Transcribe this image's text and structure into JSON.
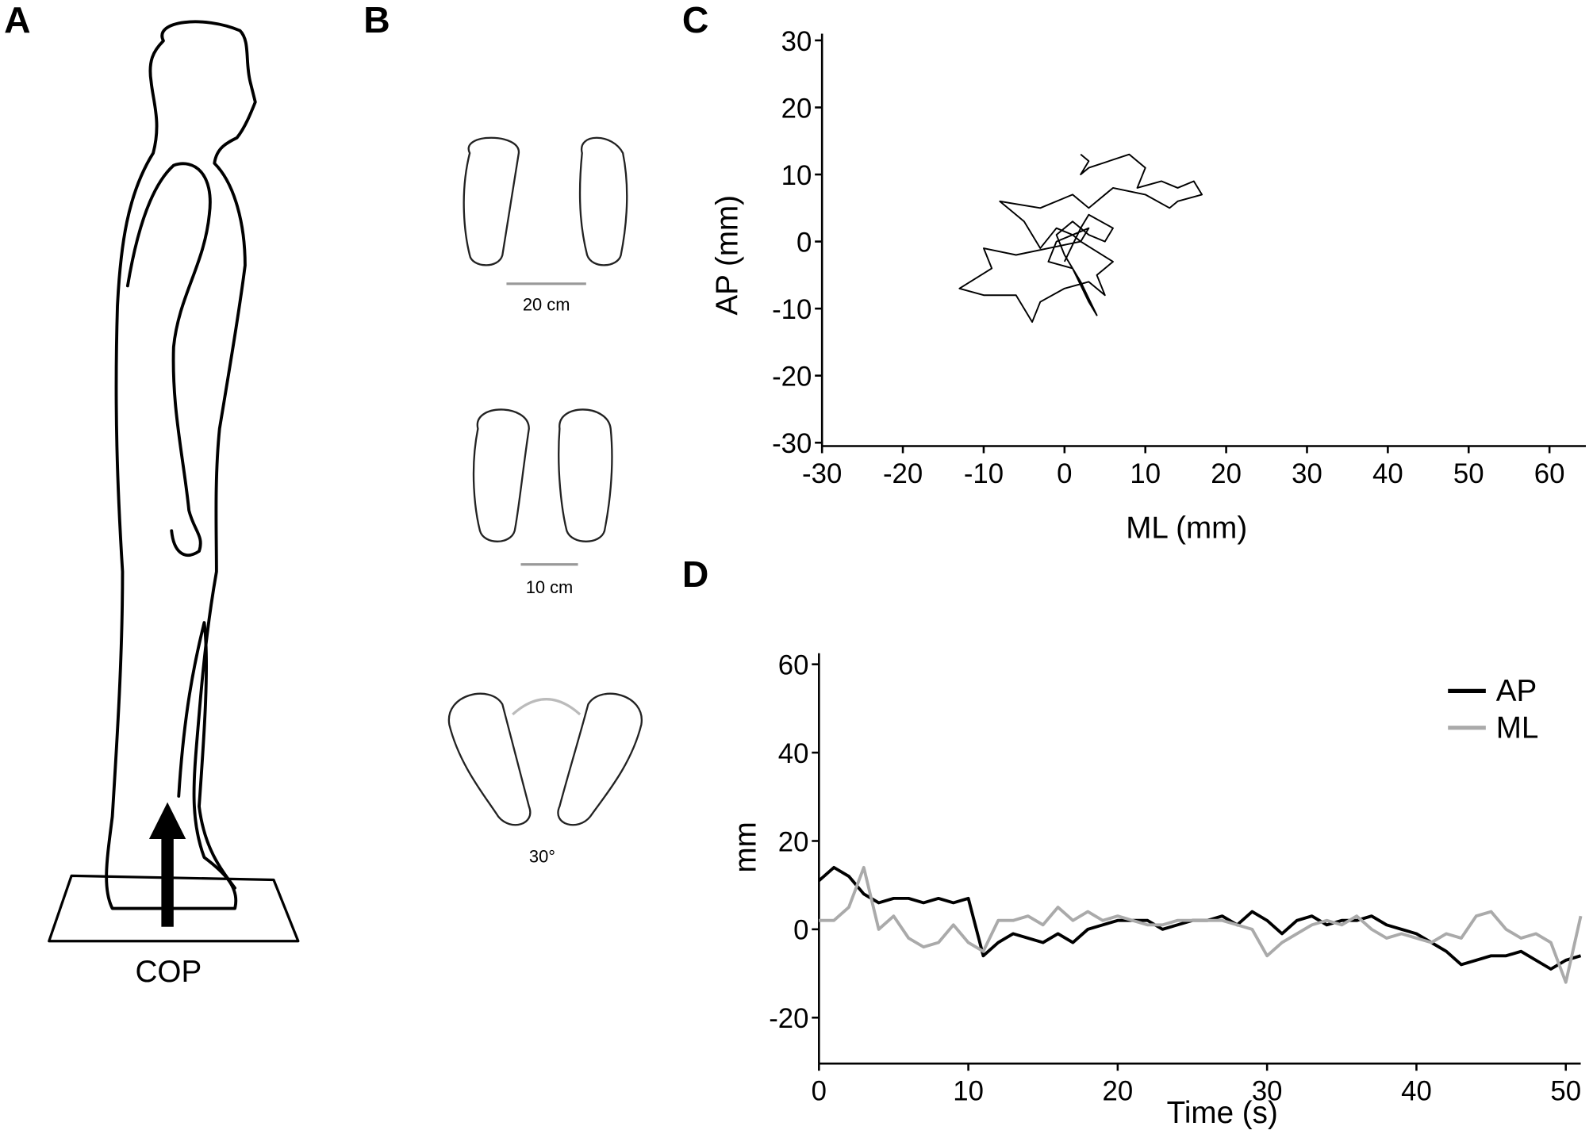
{
  "panel_labels": [
    "A",
    "B",
    "C",
    "D"
  ],
  "figure_a": {
    "label": "COP"
  },
  "figure_b": {
    "stances": [
      "20 cm",
      "10 cm",
      "30°"
    ]
  },
  "chart_data": [
    {
      "type": "line",
      "xlabel": "ML (mm)",
      "ylabel": "AP (mm)",
      "xlim": [
        -30,
        64.5
      ],
      "ylim": [
        -30.5,
        31
      ],
      "xticks": [
        -30,
        -20,
        -10,
        0,
        10,
        20,
        30,
        40,
        50,
        60
      ],
      "yticks": [
        -30,
        -20,
        -10,
        0,
        10,
        20,
        30
      ],
      "x": [
        2,
        3,
        2,
        3,
        8,
        10,
        9,
        12,
        14,
        16,
        17,
        14,
        13,
        10,
        6,
        3,
        1,
        -1,
        -3,
        -8,
        -5,
        -3,
        -1,
        1,
        2,
        -2,
        -6,
        -10,
        -9,
        -13,
        -10,
        -6,
        -4,
        -3,
        0,
        3,
        5,
        4,
        6,
        2,
        3,
        -1,
        -2,
        1,
        3,
        4,
        2,
        0,
        -1,
        1,
        3,
        5,
        6,
        3,
        2,
        0
      ],
      "values": [
        13,
        12,
        10,
        11,
        13,
        11,
        8,
        9,
        8,
        9,
        7,
        6,
        5,
        7,
        8,
        5,
        7,
        6,
        5,
        6,
        3,
        -1,
        2,
        1,
        0,
        -1,
        -2,
        -1,
        -4,
        -7,
        -8,
        -8,
        -12,
        -9,
        -7,
        -6,
        -8,
        -5,
        -3,
        0,
        2,
        0,
        -3,
        -4,
        -9,
        -11,
        -6,
        -2,
        1,
        3,
        1,
        0,
        2,
        4,
        2,
        -3
      ],
      "color": "#000000"
    },
    {
      "type": "line",
      "xlabel": "Time (s)",
      "ylabel": "mm",
      "xlim": [
        0,
        51
      ],
      "ylim": [
        -30.4,
        62.5
      ],
      "xticks": [
        0,
        10,
        20,
        30,
        40,
        50
      ],
      "yticks": [
        -20,
        0,
        20,
        40,
        60
      ],
      "legend": "upper right",
      "x": [
        0,
        1,
        2,
        3,
        4,
        5,
        6,
        7,
        8,
        9,
        10,
        11,
        12,
        13,
        14,
        15,
        16,
        17,
        18,
        19,
        20,
        21,
        22,
        23,
        24,
        25,
        26,
        27,
        28,
        29,
        30,
        31,
        32,
        33,
        34,
        35,
        36,
        37,
        38,
        39,
        40,
        41,
        42,
        43,
        44,
        45,
        46,
        47,
        48,
        49,
        50,
        51
      ],
      "series": [
        {
          "name": "AP",
          "color": "#000000",
          "values": [
            11,
            14,
            12,
            8,
            6,
            7,
            7,
            6,
            7,
            6,
            7,
            -6,
            -3,
            -1,
            -2,
            -3,
            -1,
            -3,
            0,
            1,
            2,
            2,
            2,
            0,
            1,
            2,
            2,
            3,
            1,
            4,
            2,
            -1,
            2,
            3,
            1,
            2,
            2,
            3,
            1,
            0,
            -1,
            -3,
            -5,
            -8,
            -7,
            -6,
            -6,
            -5,
            -7,
            -9,
            -7,
            -6
          ]
        },
        {
          "name": "ML",
          "color": "#aaaaaa",
          "values": [
            2,
            2,
            5,
            14,
            0,
            3,
            -2,
            -4,
            -3,
            1,
            -3,
            -5,
            2,
            2,
            3,
            1,
            5,
            2,
            4,
            2,
            3,
            2,
            1,
            1,
            2,
            2,
            2,
            2,
            1,
            0,
            -6,
            -3,
            -1,
            1,
            2,
            1,
            3,
            0,
            -2,
            -1,
            -2,
            -3,
            -1,
            -2,
            3,
            4,
            0,
            -2,
            -1,
            -3,
            -12,
            3
          ]
        }
      ]
    }
  ]
}
